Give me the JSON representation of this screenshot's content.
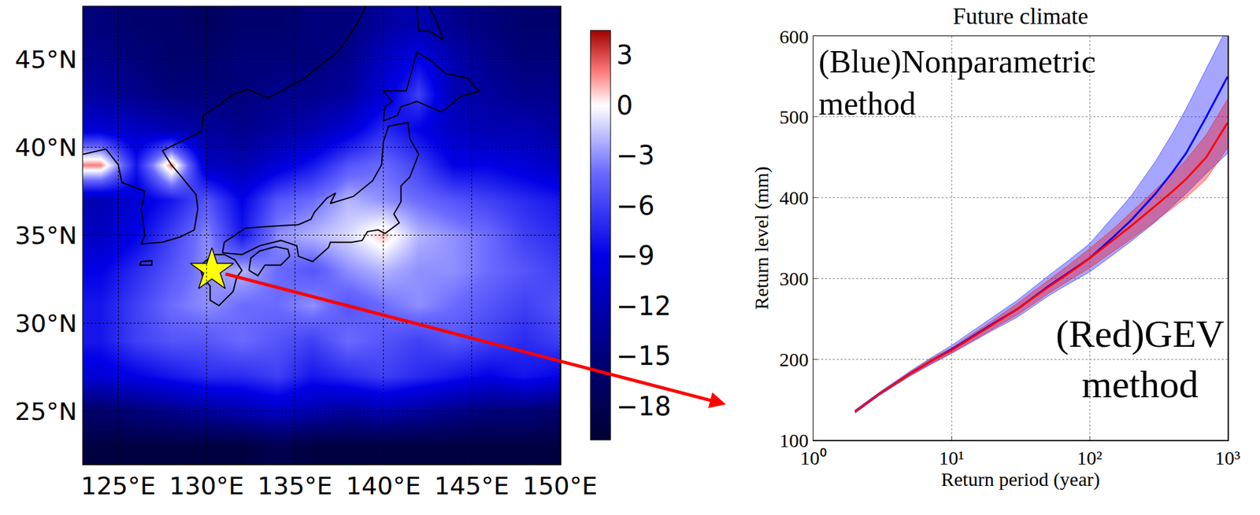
{
  "chart_data": [
    {
      "type": "heatmap",
      "x": [
        124,
        126,
        128,
        130,
        132,
        134,
        136,
        138,
        140,
        142,
        144,
        146,
        148,
        150
      ],
      "y": [
        23,
        25,
        27,
        29,
        31,
        33,
        35,
        37,
        39,
        41,
        43,
        45,
        47
      ],
      "z": [
        [
          -19,
          -19,
          -19,
          -19,
          -19,
          -18,
          -19,
          -19,
          -19,
          -19,
          -19,
          -19,
          -19,
          -19
        ],
        [
          -16,
          -15,
          -14,
          -13,
          -12,
          -11,
          -12,
          -13,
          -12,
          -13,
          -14,
          -15,
          -15,
          -16
        ],
        [
          -10,
          -9,
          -8,
          -7,
          -7,
          -6,
          -8,
          -7,
          -6,
          -7,
          -8,
          -9,
          -8,
          -9
        ],
        [
          -8,
          -6,
          -5,
          -5,
          -4,
          -5,
          -6,
          -4,
          -5,
          -6,
          -5,
          -6,
          -7,
          -6
        ],
        [
          -8,
          -6,
          -4,
          -3,
          -4,
          -4,
          -3,
          -5,
          -4,
          -3,
          -4,
          -5,
          -6,
          -5
        ],
        [
          -9,
          -7,
          -5,
          -3,
          -2,
          -4,
          -5,
          -3,
          -2,
          -3,
          -3,
          -4,
          -5,
          -6
        ],
        [
          -11,
          -9,
          -6,
          -3,
          -8,
          -3,
          -2,
          -1,
          1,
          -2,
          -3,
          -4,
          -6,
          -7
        ],
        [
          -12,
          -10,
          -8,
          -5,
          -9,
          -5,
          -4,
          -2,
          -3,
          -4,
          -5,
          -6,
          -7,
          -8
        ],
        [
          2,
          -8,
          2,
          -11,
          -12,
          -10,
          -8,
          -5,
          -4,
          -6,
          -9,
          -9,
          -10,
          -11
        ],
        [
          -10,
          -11,
          -12,
          -13,
          -14,
          -13,
          -12,
          -10,
          -7,
          -9,
          -11,
          -12,
          -12,
          -13
        ],
        [
          -13,
          -14,
          -15,
          -15,
          -15,
          -14,
          -14,
          -13,
          -10,
          -6,
          -12,
          -13,
          -14,
          -14
        ],
        [
          -14,
          -15,
          -16,
          -16,
          -15,
          -15,
          -15,
          -14,
          -11,
          -9,
          -12,
          -14,
          -15,
          -15
        ],
        [
          -15,
          -16,
          -16,
          -17,
          -16,
          -16,
          -15,
          -15,
          -13,
          -12,
          -14,
          -15,
          -16,
          -16
        ]
      ],
      "xlim": [
        123,
        150
      ],
      "ylim": [
        22,
        48
      ],
      "xticks": [
        {
          "value": 125,
          "label": "125°E"
        },
        {
          "value": 130,
          "label": "130°E"
        },
        {
          "value": 135,
          "label": "135°E"
        },
        {
          "value": 140,
          "label": "140°E"
        },
        {
          "value": 145,
          "label": "145°E"
        },
        {
          "value": 150,
          "label": "150°E"
        }
      ],
      "yticks": [
        {
          "value": 25,
          "label": "25°N"
        },
        {
          "value": 30,
          "label": "30°N"
        },
        {
          "value": 35,
          "label": "35°N"
        },
        {
          "value": 40,
          "label": "40°N"
        },
        {
          "value": 45,
          "label": "45°N"
        }
      ],
      "grid": true,
      "colorbar": {
        "range": [
          -20,
          4.5
        ],
        "ticks": [
          3,
          0,
          {
            "value": -3,
            "label": "−3"
          },
          {
            "value": -6,
            "label": "−6"
          },
          {
            "value": -9,
            "label": "−9"
          },
          {
            "value": -12,
            "label": "−12"
          },
          {
            "value": -15,
            "label": "−15"
          },
          {
            "value": -18,
            "label": "−18"
          }
        ]
      },
      "coastlines": [
        {
          "lon": [
            123,
            124.3,
            125,
            125.2,
            126.5,
            126.3,
            126.5,
            126.3,
            127.5,
            128.5,
            129.3,
            129.5,
            129.4,
            128.6,
            128.0,
            127.5,
            128.5,
            129.7,
            129.8,
            130.7,
            131.5,
            132.3,
            133.5,
            135.5,
            137.5,
            138.5,
            139
          ],
          "lat": [
            39.6,
            39.9,
            39,
            38,
            37.5,
            36.5,
            35,
            34.5,
            34.6,
            34.9,
            35.3,
            36.5,
            37.3,
            38.3,
            39.0,
            39.8,
            40.3,
            40.9,
            41.8,
            42.4,
            43,
            43.3,
            42.8,
            43.9,
            45.5,
            47,
            48
          ]
        },
        {
          "lon": [
            126.2,
            126.9,
            126.9,
            126.3,
            126.2
          ],
          "lat": [
            33.3,
            33.3,
            33.55,
            33.5,
            33.3
          ]
        },
        {
          "lon": [
            130.0,
            129.6,
            129.8,
            130.2,
            130.2,
            130.7,
            131.1,
            131.5,
            131.7,
            132.0,
            131.6,
            131.0,
            130.5,
            130.0
          ],
          "lat": [
            33.6,
            33.2,
            32.6,
            32.1,
            31.3,
            31.0,
            31.4,
            31.8,
            32.6,
            33.0,
            33.6,
            33.9,
            33.9,
            33.6
          ]
        },
        {
          "lon": [
            132.4,
            132.9,
            133.3,
            134.2,
            134.7,
            134.6,
            133.9,
            133.0,
            132.5,
            132.4
          ],
          "lat": [
            33.0,
            32.7,
            33.3,
            33.3,
            33.8,
            34.2,
            34.35,
            34.1,
            33.7,
            33.0
          ]
        },
        {
          "lon": [
            130.9,
            131.0,
            132.2,
            133.5,
            135.2,
            135.9,
            136.1,
            136.8,
            137.3,
            137.0,
            138.3,
            139.4,
            139.9,
            140.0,
            140.3,
            141.4,
            141.5,
            142.0,
            141.5,
            141.0,
            141.0,
            140.6,
            140.9,
            140.1,
            139.7,
            139.1,
            138.8,
            138.2,
            137.0,
            136.9,
            136.0,
            135.2,
            135.1,
            134.2,
            133.0,
            132.0,
            130.9
          ],
          "lat": [
            34.0,
            34.6,
            35.4,
            35.5,
            35.6,
            35.9,
            36.3,
            37.1,
            37.4,
            36.8,
            37.2,
            38.1,
            39.0,
            40.3,
            41.2,
            41.4,
            40.5,
            39.6,
            38.3,
            37.8,
            36.9,
            36.2,
            35.7,
            35.1,
            35.3,
            35.2,
            34.7,
            34.6,
            34.6,
            34.3,
            33.5,
            33.8,
            34.4,
            34.7,
            34.4,
            33.9,
            34.0
          ]
        },
        {
          "lon": [
            140.0,
            140.1,
            140.5,
            140.0,
            141.3,
            141.6,
            141.9,
            142.6,
            143.5,
            144.8,
            145.3,
            145.5,
            144.4,
            143.3,
            141.9,
            141.0,
            140.8,
            140.0
          ],
          "lat": [
            41.5,
            42.3,
            42.6,
            43.2,
            43.2,
            44.3,
            45.4,
            45.0,
            44.2,
            43.9,
            43.3,
            43.2,
            42.9,
            42.0,
            42.6,
            42.3,
            41.8,
            41.5
          ]
        },
        {
          "lon": [
            141.9,
            142.0,
            142.6,
            143.4,
            143.0,
            142.6
          ],
          "lat": [
            48,
            46.6,
            46.6,
            46.1,
            47.2,
            48
          ]
        }
      ],
      "station": {
        "lon": 130.3,
        "lat": 33.0,
        "marker": "star",
        "color": "#ffff00"
      }
    },
    {
      "type": "line",
      "title": "Future climate",
      "x_label": "Return period (year)",
      "y_label": "Return level (mm)",
      "log": "x",
      "grid": true,
      "xlim": [
        1,
        1000
      ],
      "ylim": [
        100,
        600
      ],
      "xticks": [
        {
          "value": 1,
          "label": "10⁰"
        },
        {
          "value": 10,
          "label": "10¹"
        },
        {
          "value": 100,
          "label": "10²"
        },
        {
          "value": 1000,
          "label": "10³"
        }
      ],
      "yticks": [
        100,
        200,
        300,
        400,
        500,
        600
      ],
      "x": [
        2,
        3,
        5,
        7,
        10,
        20,
        30,
        50,
        70,
        100,
        150,
        200,
        300,
        400,
        500,
        700,
        1000
      ],
      "series": [
        {
          "name": "(Blue)Nonparametric method",
          "color": "#0000ff",
          "values": [
            135,
            157,
            182,
            197,
            212,
            244,
            262,
            290,
            307,
            325,
            352,
            372,
            405,
            432,
            455,
            500,
            550
          ],
          "lower": [
            133,
            155,
            179,
            193,
            207,
            236,
            252,
            278,
            293,
            308,
            330,
            346,
            370,
            390,
            405,
            430,
            455
          ],
          "upper": [
            137,
            159,
            185,
            201,
            217,
            252,
            273,
            303,
            322,
            343,
            378,
            402,
            445,
            480,
            510,
            560,
            612
          ]
        },
        {
          "name": "(Red)GEV method",
          "color": "#ff0000",
          "values": [
            135,
            157,
            182,
            197,
            211,
            243,
            262,
            289,
            306,
            325,
            348,
            365,
            390,
            408,
            423,
            450,
            493
          ],
          "lower": [
            134,
            156,
            180,
            194,
            208,
            238,
            255,
            281,
            297,
            313,
            334,
            349,
            371,
            387,
            400,
            423,
            462
          ],
          "upper": [
            136,
            158,
            184,
            200,
            214,
            248,
            269,
            297,
            316,
            337,
            362,
            382,
            410,
            430,
            447,
            478,
            522
          ]
        }
      ]
    }
  ]
}
